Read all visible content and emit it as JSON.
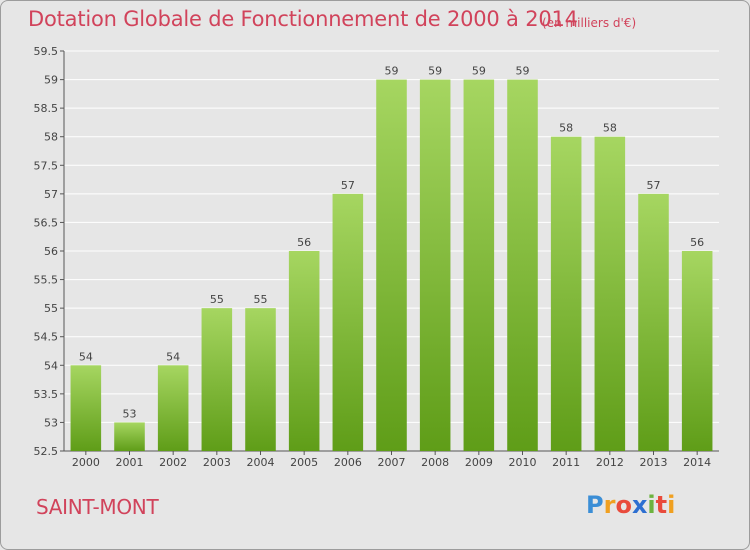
{
  "title": "Dotation Globale de Fonctionnement de 2000 à 2014",
  "unit": "(en milliers d'€)",
  "commune": "SAINT-MONT",
  "logo": {
    "letters": [
      "P",
      "r",
      "o",
      "x",
      "i",
      "t",
      "i"
    ],
    "colors": [
      "#3b8ed6",
      "#f0a020",
      "#e94b3c",
      "#2d6fd1",
      "#6db33f",
      "#e94b3c",
      "#f0a020"
    ]
  },
  "colors": {
    "bar_light": "#9fd05a",
    "bar_dark": "#5e9c1a",
    "grid": "#ffffff",
    "text_accent": "#d1435b"
  },
  "chart_data": {
    "type": "bar",
    "categories": [
      "2000",
      "2001",
      "2002",
      "2003",
      "2004",
      "2005",
      "2006",
      "2007",
      "2008",
      "2009",
      "2010",
      "2011",
      "2012",
      "2013",
      "2014"
    ],
    "values": [
      54,
      53,
      54,
      55,
      55,
      56,
      57,
      59,
      59,
      59,
      59,
      58,
      58,
      57,
      56
    ],
    "labels": [
      "54",
      "53",
      "54",
      "55",
      "55",
      "56",
      "57",
      "59",
      "59",
      "59",
      "59",
      "58",
      "58",
      "57",
      "56"
    ],
    "y_ticks": [
      "52.5",
      "53",
      "53.5",
      "54",
      "54.5",
      "55",
      "55.5",
      "56",
      "56.5",
      "57",
      "57.5",
      "58",
      "58.5",
      "59",
      "59.5"
    ],
    "ylim": [
      52.5,
      59.5
    ],
    "grid": true,
    "title": "Dotation Globale de Fonctionnement de 2000 à 2014",
    "xlabel": "",
    "ylabel": ""
  }
}
